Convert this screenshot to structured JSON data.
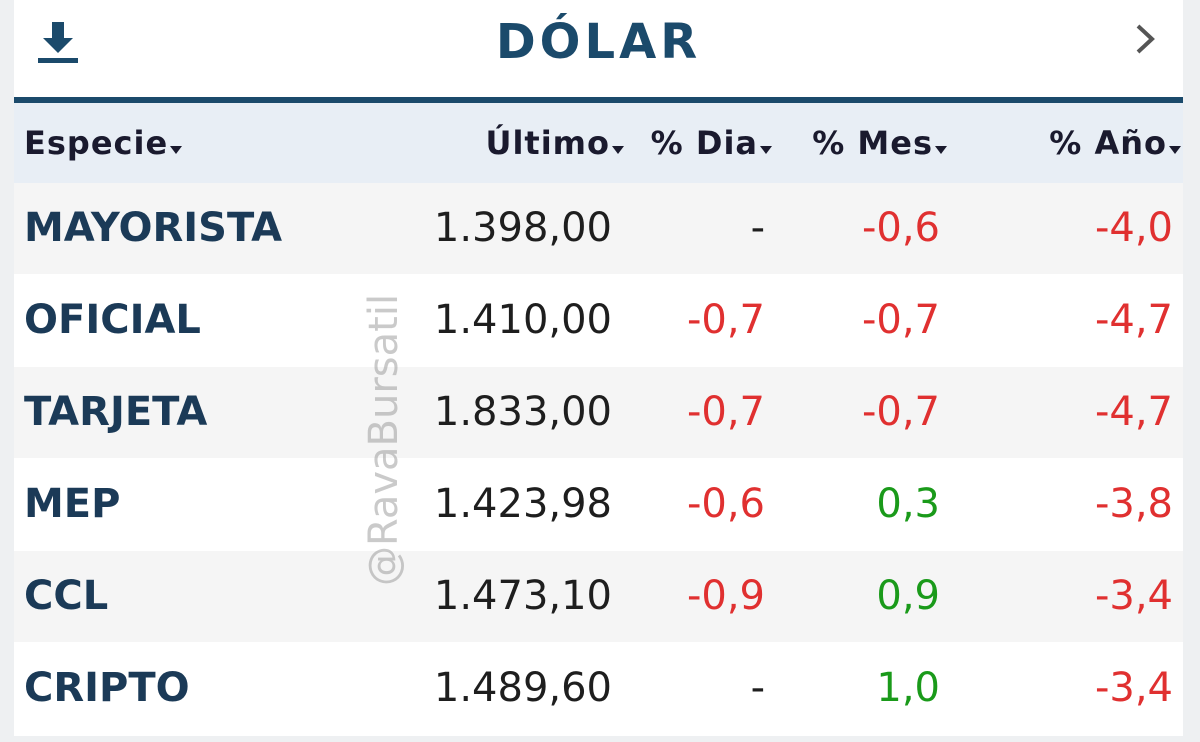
{
  "header": {
    "title": "DÓLAR"
  },
  "watermark": "@RavaBursatil",
  "table": {
    "columns": [
      "Especie",
      "Último",
      "% Dia",
      "% Mes",
      "% Año"
    ],
    "rows": [
      [
        "MAYORISTA",
        "1.398,00",
        "-",
        "-0,6",
        "-4,0"
      ],
      [
        "OFICIAL",
        "1.410,00",
        "-0,7",
        "-0,7",
        "-4,7"
      ],
      [
        "TARJETA",
        "1.833,00",
        "-0,7",
        "-0,7",
        "-4,7"
      ],
      [
        "MEP",
        "1.423,98",
        "-0,6",
        "0,3",
        "-3,8"
      ],
      [
        "CCL",
        "1.473,10",
        "-0,9",
        "0,9",
        "-3,4"
      ],
      [
        "CRIPTO",
        "1.489,60",
        "-",
        "1,0",
        "-3,4"
      ]
    ]
  }
}
